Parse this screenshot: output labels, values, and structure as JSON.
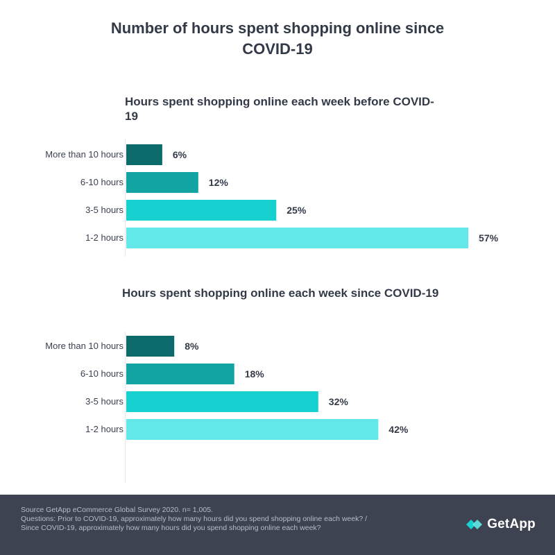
{
  "chart_data": {
    "type": "bar",
    "title": "Number of hours spent shopping online since COVID-19",
    "colors": [
      "#0b6b6b",
      "#12a3a3",
      "#17d1d1",
      "#62e8e8"
    ],
    "xlim": [
      0,
      60
    ],
    "panels": [
      {
        "title": "Hours spent shopping online each week before COVID-19",
        "categories": [
          "More than 10 hours",
          "6-10 hours",
          "3-5 hours",
          "1-2 hours"
        ],
        "values": [
          6,
          12,
          25,
          57
        ],
        "labels": [
          "6%",
          "12%",
          "25%",
          "57%"
        ]
      },
      {
        "title": "Hours spent shopping online each week since COVID-19",
        "categories": [
          "More than 10 hours",
          "6-10 hours",
          "3-5 hours",
          "1-2 hours"
        ],
        "values": [
          8,
          18,
          32,
          42
        ],
        "labels": [
          "8%",
          "18%",
          "32%",
          "42%"
        ]
      }
    ]
  },
  "footer": {
    "source": "Source GetApp eCommerce Global Survey 2020. n= 1,005.",
    "questions": "Questions: Prior to COVID-19, approximately how many hours did you spend shopping online each week? / Since COVID-19, approximately how many hours did you spend shopping online each week?",
    "logo_text": "GetApp"
  },
  "icons": {
    "logo": "getapp-logo-icon"
  }
}
